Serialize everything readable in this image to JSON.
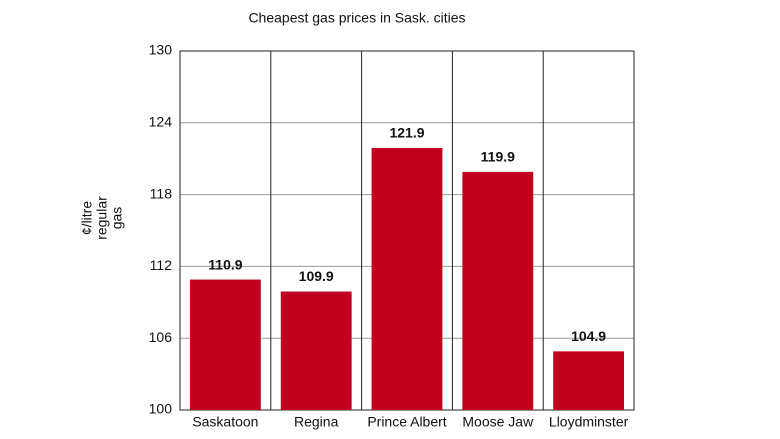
{
  "chart_data": {
    "type": "bar",
    "title": "Cheapest gas prices in Sask. cities",
    "ylabel": [
      "¢/litre",
      "regular",
      "gas"
    ],
    "categories": [
      "Saskatoon",
      "Regina",
      "Prince Albert",
      "Moose Jaw",
      "Lloydminster"
    ],
    "values": [
      110.9,
      109.9,
      121.9,
      119.9,
      104.9
    ],
    "color": "#c1001f",
    "ylim": [
      100,
      130
    ],
    "yticks": [
      100,
      106,
      112,
      118,
      124,
      130
    ],
    "grid": true
  }
}
